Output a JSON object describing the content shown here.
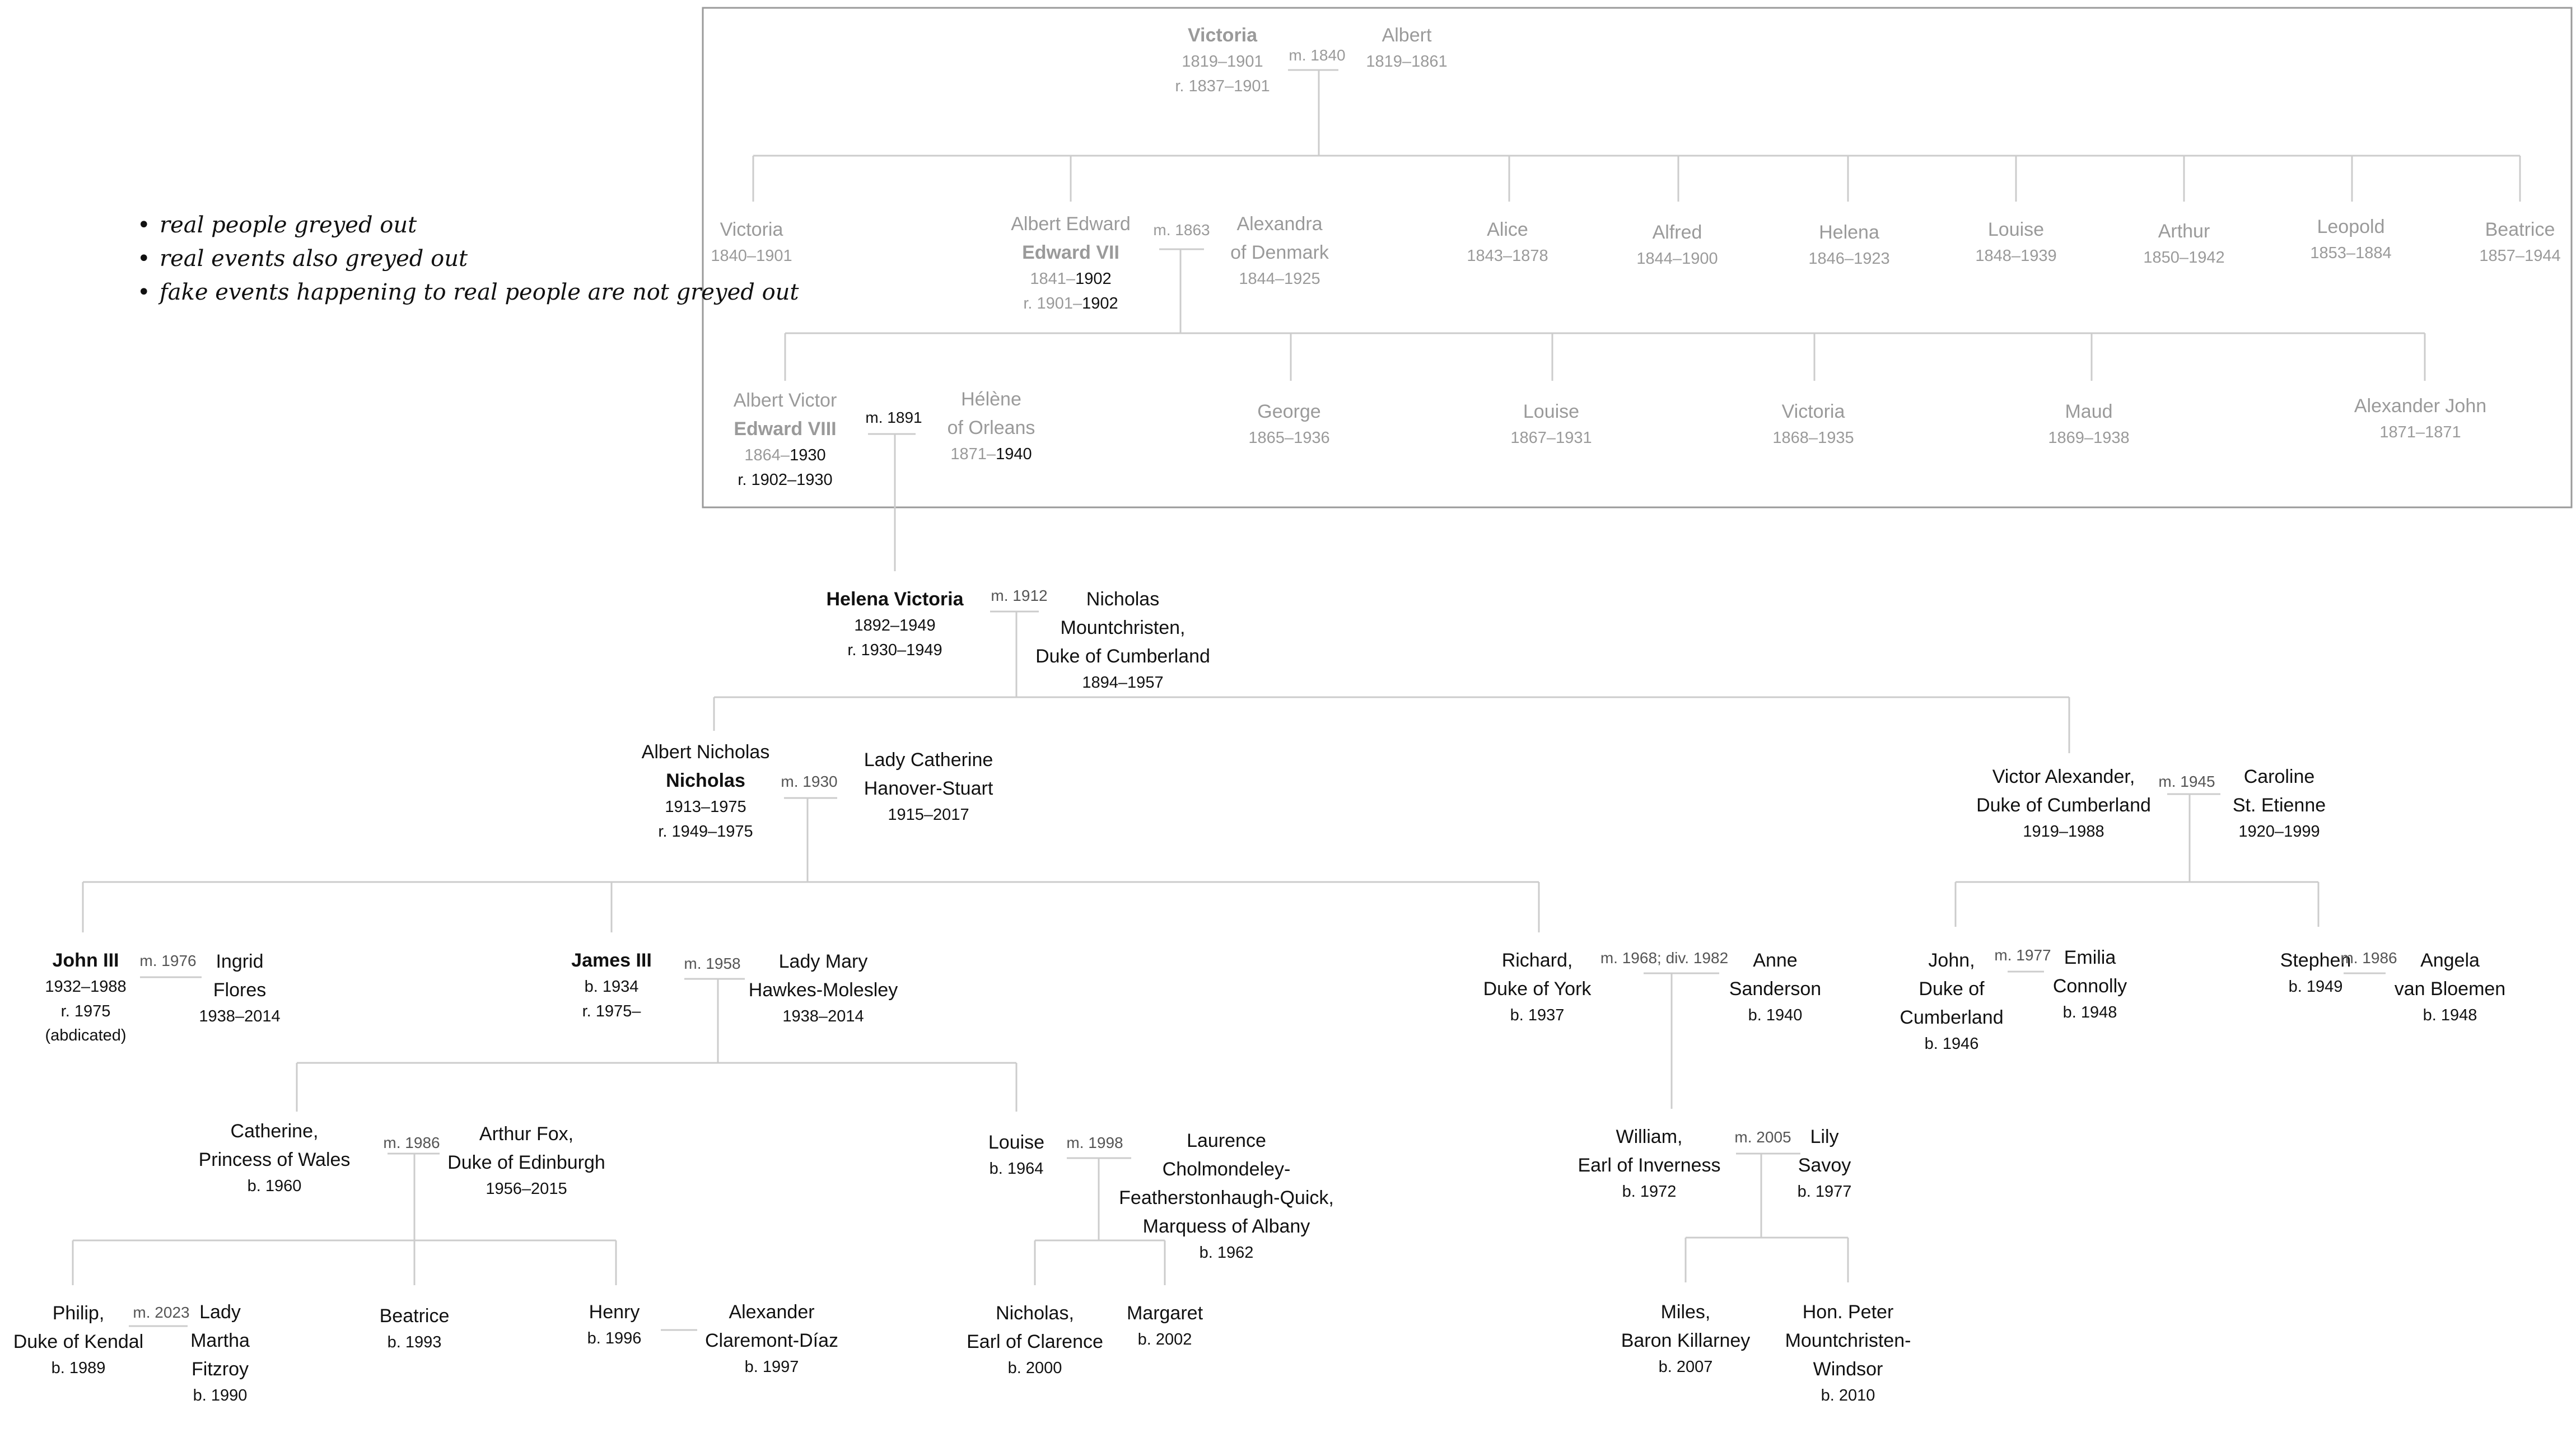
{
  "notes": [
    "real people greyed out",
    "real events also greyed out",
    "fake events happening to real people are not greyed out"
  ],
  "colors": {
    "real": "#9a9a9a",
    "fictional": "#111111",
    "line": "#cccccc",
    "frame": "#9a9a9a"
  },
  "marriages": {
    "victoria_albert": "m. 1840",
    "edward_alexandra": "m. 1863",
    "albert_victor_helene": "m. 1891",
    "helena_nicholas": "m. 1912",
    "nicholas_catherine": "m. 1930",
    "victor_caroline": "m. 1945",
    "john3_ingrid": "m. 1976",
    "james3_mary": "m. 1958",
    "richard_anne": "m. 1968; div. 1982",
    "john_emilia": "m. 1977",
    "stephen_angela": "m. 1986",
    "catherine_arthur": "m. 1986",
    "louise_laurence": "m. 1998",
    "william_lily": "m. 2005",
    "philip_martha": "m. 2023"
  },
  "people": {
    "victoria": {
      "name": "Victoria",
      "dates": "1819–1901",
      "reign": "r. 1837–1901"
    },
    "albert": {
      "name": "Albert",
      "dates": "1819–1861"
    },
    "victoria_jr": {
      "name": "Victoria",
      "dates": "1840–1901"
    },
    "albert_edward": {
      "name": "Albert Edward",
      "regnal": "Edward VII",
      "born": "1841–",
      "died": "1902",
      "reign_start": "r. 1901–",
      "reign_end": "1902"
    },
    "alexandra": {
      "name1": "Alexandra",
      "name2": "of Denmark",
      "dates": "1844–1925"
    },
    "alice": {
      "name": "Alice",
      "dates": "1843–1878"
    },
    "alfred": {
      "name": "Alfred",
      "dates": "1844–1900"
    },
    "helena": {
      "name": "Helena",
      "dates": "1846–1923"
    },
    "louise_1848": {
      "name": "Louise",
      "dates": "1848–1939"
    },
    "arthur": {
      "name": "Arthur",
      "dates": "1850–1942"
    },
    "leopold": {
      "name": "Leopold",
      "dates": "1853–1884"
    },
    "beatrice_1857": {
      "name": "Beatrice",
      "dates": "1857–1944"
    },
    "albert_victor": {
      "name": "Albert Victor",
      "regnal": "Edward VIII",
      "born": "1864–",
      "died": "1930",
      "reign": "r. 1902–1930"
    },
    "helene": {
      "name1": "Hélène",
      "name2": "of Orleans",
      "born": "1871–",
      "died": "1940"
    },
    "george": {
      "name": "George",
      "dates": "1865–1936"
    },
    "louise_1867": {
      "name": "Louise",
      "dates": "1867–1931"
    },
    "victoria_1868": {
      "name": "Victoria",
      "dates": "1868–1935"
    },
    "maud": {
      "name": "Maud",
      "dates": "1869–1938"
    },
    "alexander_john": {
      "name": "Alexander John",
      "dates": "1871–1871"
    },
    "helena_victoria": {
      "name": "Helena Victoria",
      "dates": "1892–1949",
      "reign": "r. 1930–1949"
    },
    "nicholas_m": {
      "line1": "Nicholas",
      "line2": "Mountchristen,",
      "line3": "Duke of Cumberland",
      "dates": "1894–1957"
    },
    "albert_nicholas": {
      "name": "Albert Nicholas",
      "regnal": "Nicholas",
      "dates": "1913–1975",
      "reign": "r. 1949–1975"
    },
    "lady_catherine": {
      "line1": "Lady Catherine",
      "line2": "Hanover-Stuart",
      "dates": "1915–2017"
    },
    "victor_alexander": {
      "line1": "Victor Alexander,",
      "line2": "Duke of Cumberland",
      "dates": "1919–1988"
    },
    "caroline": {
      "line1": "Caroline",
      "line2": "St. Etienne",
      "dates": "1920–1999"
    },
    "john3": {
      "name": "John III",
      "dates": "1932–1988",
      "reign": "r. 1975",
      "note": "(abdicated)"
    },
    "ingrid": {
      "line1": "Ingrid",
      "line2": "Flores",
      "dates": "1938–2014"
    },
    "james3": {
      "name": "James III",
      "dates": "b. 1934",
      "reign": "r. 1975–"
    },
    "lady_mary": {
      "line1": "Lady Mary",
      "line2": "Hawkes-Molesley",
      "dates": "1938–2014"
    },
    "richard": {
      "line1": "Richard,",
      "line2": "Duke of York",
      "dates": "b. 1937"
    },
    "anne": {
      "line1": "Anne",
      "line2": "Sanderson",
      "dates": "b. 1940"
    },
    "john_c": {
      "line1": "John,",
      "line2": "Duke of",
      "line3": "Cumberland",
      "dates": "b. 1946"
    },
    "emilia": {
      "line1": "Emilia",
      "line2": "Connolly",
      "dates": "b. 1948"
    },
    "stephen": {
      "line1": "Stephen",
      "dates": "b. 1949"
    },
    "angela": {
      "line1": "Angela",
      "line2": "van Bloemen",
      "dates": "b. 1948"
    },
    "catherine_pw": {
      "line1": "Catherine,",
      "line2": "Princess of Wales",
      "dates": "b. 1960"
    },
    "arthur_fox": {
      "line1": "Arthur Fox,",
      "line2": "Duke of Edinburgh",
      "dates": "1956–2015"
    },
    "louise_1964": {
      "line1": "Louise",
      "dates": "b. 1964"
    },
    "laurence": {
      "line1": "Laurence",
      "line2": "Cholmondeley-",
      "line3": "Featherstonhaugh-Quick,",
      "line4": "Marquess of Albany",
      "dates": "b. 1962"
    },
    "william": {
      "line1": "William,",
      "line2": "Earl of Inverness",
      "dates": "b. 1972"
    },
    "lily": {
      "line1": "Lily",
      "line2": "Savoy",
      "dates": "b. 1977"
    },
    "philip": {
      "line1": "Philip,",
      "line2": "Duke of Kendal",
      "dates": "b. 1989"
    },
    "lady_martha": {
      "line1": "Lady",
      "line2": "Martha",
      "line3": "Fitzroy",
      "dates": "b. 1990"
    },
    "beatrice_1993": {
      "line1": "Beatrice",
      "dates": "b. 1993"
    },
    "henry": {
      "line1": "Henry",
      "dates": "b. 1996"
    },
    "alexander_cd": {
      "line1": "Alexander",
      "line2": "Claremont-Díaz",
      "dates": "b. 1997"
    },
    "nicholas_clarence": {
      "line1": "Nicholas,",
      "line2": "Earl of Clarence",
      "dates": "b. 2000"
    },
    "margaret": {
      "line1": "Margaret",
      "dates": "b. 2002"
    },
    "miles": {
      "line1": "Miles,",
      "line2": "Baron Killarney",
      "dates": "b. 2007"
    },
    "peter": {
      "line1": "Hon. Peter",
      "line2": "Mountchristen-",
      "line3": "Windsor",
      "dates": "b. 2010"
    }
  }
}
